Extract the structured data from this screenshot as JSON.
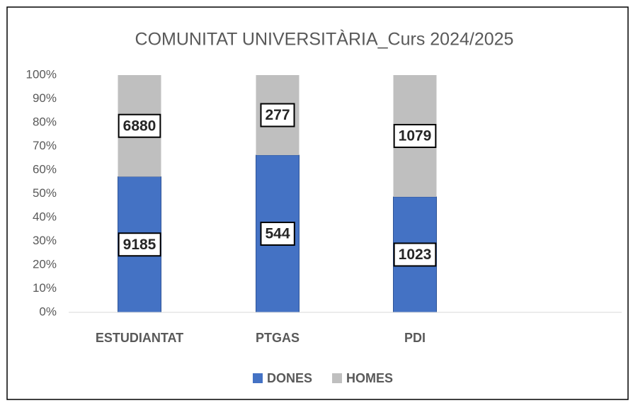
{
  "chart_data": {
    "type": "bar",
    "stacked": "percent",
    "title": "COMUNITAT UNIVERSITÀRIA_Curs 2024/2025",
    "categories": [
      "ESTUDIANTAT",
      "PTGAS",
      "PDI"
    ],
    "series": [
      {
        "name": "DONES",
        "color": "#4472c4",
        "values": [
          9185,
          544,
          1023
        ]
      },
      {
        "name": "HOMES",
        "color": "#bfbfbf",
        "values": [
          6880,
          277,
          1079
        ]
      }
    ],
    "ylim": [
      0,
      100
    ],
    "yticks": [
      {
        "value": 0,
        "label": "0%"
      },
      {
        "value": 10,
        "label": "10%"
      },
      {
        "value": 20,
        "label": "20%"
      },
      {
        "value": 30,
        "label": "30%"
      },
      {
        "value": 40,
        "label": "40%"
      },
      {
        "value": 50,
        "label": "50%"
      },
      {
        "value": 60,
        "label": "60%"
      },
      {
        "value": 70,
        "label": "70%"
      },
      {
        "value": 80,
        "label": "80%"
      },
      {
        "value": 90,
        "label": "90%"
      },
      {
        "value": 100,
        "label": "100%"
      }
    ],
    "grid": false,
    "legend": "bottom"
  }
}
